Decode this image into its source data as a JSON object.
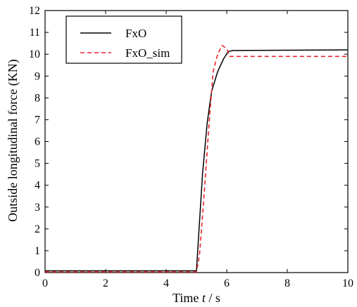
{
  "chart_data": {
    "type": "line",
    "xlabel_prefix": "Time ",
    "xlabel_var": "t",
    "xlabel_suffix": " / s",
    "ylabel": "Outside longitudinal force  (KN)",
    "xlim": [
      0,
      10
    ],
    "ylim": [
      0,
      12
    ],
    "xticks": [
      0,
      2,
      4,
      6,
      8,
      10
    ],
    "yticks": [
      0,
      1,
      2,
      3,
      4,
      5,
      6,
      7,
      8,
      9,
      10,
      11,
      12
    ],
    "grid": false,
    "legend_position": "top-left",
    "series": [
      {
        "name": "FxO",
        "color": "#000000",
        "style": "solid",
        "x": [
          0,
          5.0,
          5.05,
          5.2,
          5.35,
          5.5,
          5.7,
          5.9,
          6.05,
          6.2,
          10
        ],
        "y": [
          0.08,
          0.08,
          1.2,
          4.5,
          6.8,
          8.3,
          9.2,
          9.8,
          10.12,
          10.17,
          10.2
        ]
      },
      {
        "name": "FxO_sim",
        "color": "#e8232a",
        "style": "dashed",
        "x": [
          0,
          5.0,
          5.1,
          5.25,
          5.4,
          5.55,
          5.7,
          5.85,
          6.0,
          6.1,
          10
        ],
        "y": [
          0.03,
          0.03,
          0.8,
          3.5,
          6.5,
          9.2,
          10.0,
          10.4,
          10.25,
          9.9,
          9.9
        ]
      }
    ]
  }
}
